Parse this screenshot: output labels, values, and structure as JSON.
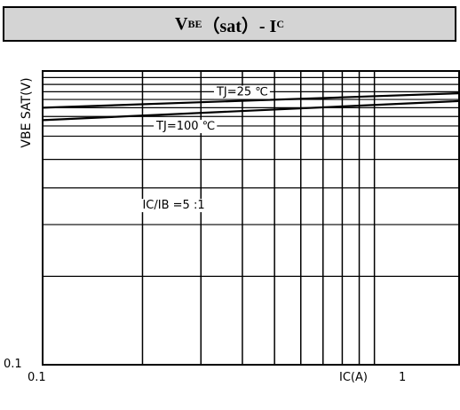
{
  "title": {
    "main": "V",
    "sub1": "BE",
    "mid": "（sat）- I",
    "sub2": "C"
  },
  "chart_data": {
    "type": "line",
    "title": "VBE（sat）- IC",
    "xlabel": "IC(A)",
    "ylabel": "VBE SAT(V)",
    "xscale": "log",
    "yscale": "log",
    "xlim": [
      0.1,
      1.8
    ],
    "ylim": [
      0.1,
      1.0
    ],
    "x_tick_labels": [
      "0.1",
      "1"
    ],
    "y_tick_labels": [
      "0.1"
    ],
    "grid": true,
    "series": [
      {
        "name": "TJ=25 ℃",
        "x": [
          0.1,
          1.8
        ],
        "y": [
          0.75,
          0.84
        ]
      },
      {
        "name": "TJ=100 ℃",
        "x": [
          0.1,
          1.8
        ],
        "y": [
          0.68,
          0.79
        ]
      }
    ],
    "annotations": [
      "IC/IB =5 :1"
    ]
  },
  "colors": {
    "line": "#000000",
    "grid": "#000000",
    "banner": "#d4d4d4"
  }
}
